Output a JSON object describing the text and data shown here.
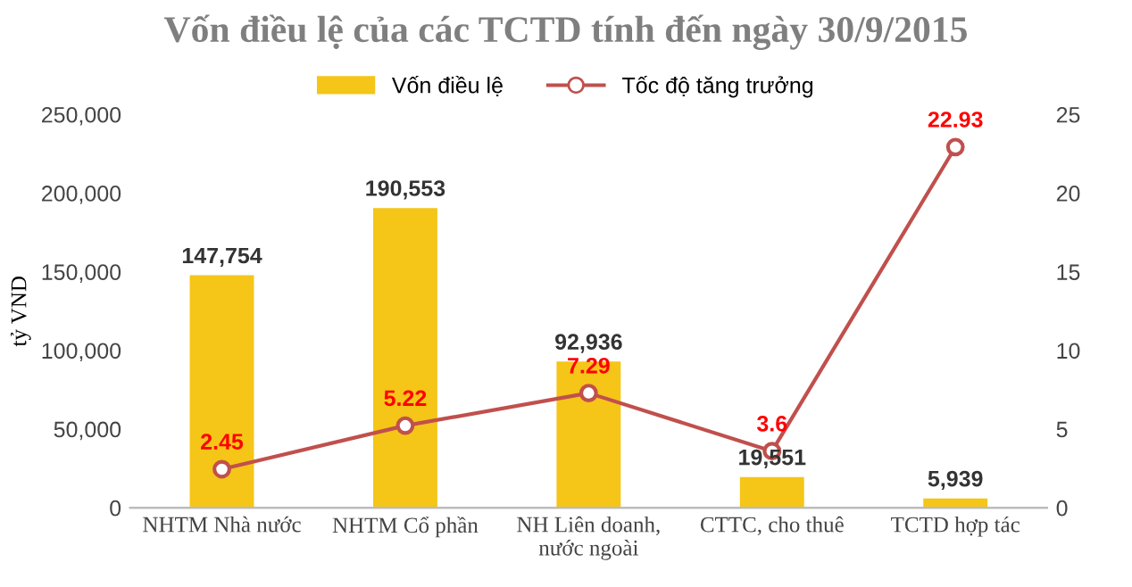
{
  "chart_data": {
    "type": "bar",
    "title": "Vốn điều lệ của các TCTD tính đến ngày 30/9/2015",
    "ylabel": "tỷ VND",
    "categories": [
      "NHTM Nhà nước",
      "NHTM Cổ phần",
      "NH Liên doanh,\nnước ngoài",
      "CTTC, cho thuê",
      "TCTD hợp tác"
    ],
    "series": [
      {
        "name": "Vốn điều lệ",
        "color": "#f5c518",
        "values": [
          147754,
          190553,
          92936,
          19551,
          5939
        ],
        "value_labels": [
          "147,754",
          "190,553",
          "92,936",
          "19,551",
          "5,939"
        ]
      },
      {
        "name": "Tốc độ tăng trưởng",
        "type": "line",
        "axis": "y2",
        "color": "#c0504d",
        "marker": "circle",
        "values": [
          2.45,
          5.22,
          7.29,
          3.6,
          22.93
        ],
        "value_labels": [
          "2.45",
          "5.22",
          "7.29",
          "3.6",
          "22.93"
        ]
      }
    ],
    "ylim": [
      0,
      250000
    ],
    "yticks": [
      0,
      {
        "value": 50000,
        "label": "50,000"
      },
      {
        "value": 100000,
        "label": "100,000"
      },
      {
        "value": 150000,
        "label": "150,000"
      },
      {
        "value": 200000,
        "label": "200,000"
      },
      {
        "value": 250000,
        "label": "250,000"
      }
    ],
    "y2lim": [
      0,
      25
    ],
    "y2ticks": [
      0,
      5,
      10,
      15,
      20,
      25
    ],
    "grid": false,
    "legend": "top"
  }
}
